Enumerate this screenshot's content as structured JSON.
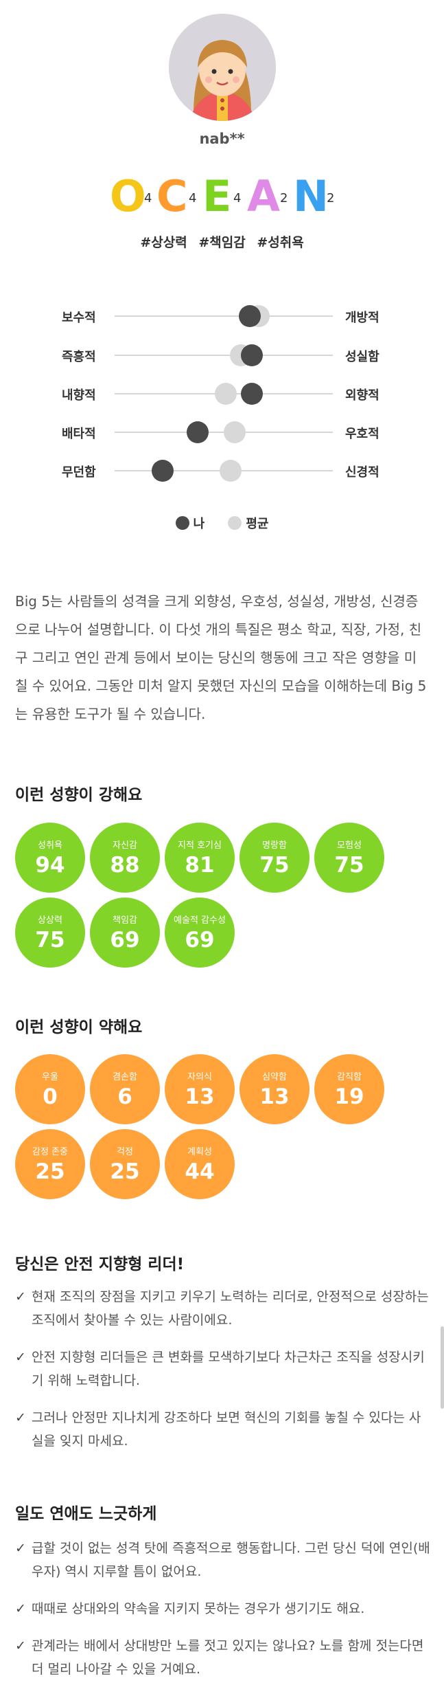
{
  "profile": {
    "username": "nab**"
  },
  "ocean": [
    {
      "letter": "O",
      "score": "4",
      "color": "#f5c518"
    },
    {
      "letter": "C",
      "score": "4",
      "color": "#ff9a2e"
    },
    {
      "letter": "E",
      "score": "4",
      "color": "#7ed321"
    },
    {
      "letter": "A",
      "score": "2",
      "color": "#e08ae8"
    },
    {
      "letter": "N",
      "score": "2",
      "color": "#3aa0f0"
    }
  ],
  "tags": [
    "#상상력",
    "#책임감",
    "#성취욕"
  ],
  "traits": [
    {
      "left": "보수적",
      "right": "개방적",
      "me": 0.62,
      "avg": 0.66
    },
    {
      "left": "즉흥적",
      "right": "성실함",
      "me": 0.63,
      "avg": 0.58
    },
    {
      "left": "내향적",
      "right": "외향적",
      "me": 0.63,
      "avg": 0.51
    },
    {
      "left": "배타적",
      "right": "우호적",
      "me": 0.38,
      "avg": 0.55
    },
    {
      "left": "무던함",
      "right": "신경적",
      "me": 0.22,
      "avg": 0.53
    }
  ],
  "legend": {
    "me_label": "나",
    "avg_label": "평균",
    "me_color": "#4a4a4a",
    "avg_color": "#d8d8d8"
  },
  "description": "Big 5는 사람들의 성격을 크게 외향성, 우호성, 성실성, 개방성, 신경증으로 나누어 설명합니다. 이 다섯 개의 특질은 평소 학교, 직장, 가정, 친구 그리고 연인 관계 등에서 보이는 당신의 행동에 크고 작은 영향을 미칠 수 있어요. 그동안 미처 알지 못했던 자신의 모습을 이해하는데 Big 5는 유용한 도구가 될 수 있습니다.",
  "strong": {
    "title": "이런 성향이 강해요",
    "items": [
      {
        "label": "성취욕",
        "value": "94"
      },
      {
        "label": "자신감",
        "value": "88"
      },
      {
        "label": "지적 호기심",
        "value": "81"
      },
      {
        "label": "명랑함",
        "value": "75"
      },
      {
        "label": "모험성",
        "value": "75"
      },
      {
        "label": "상상력",
        "value": "75"
      },
      {
        "label": "책임감",
        "value": "69"
      },
      {
        "label": "예술적 감수성",
        "value": "69"
      }
    ]
  },
  "weak": {
    "title": "이런 성향이 약해요",
    "items": [
      {
        "label": "우울",
        "value": "0"
      },
      {
        "label": "겸손함",
        "value": "6"
      },
      {
        "label": "자의식",
        "value": "13"
      },
      {
        "label": "심약함",
        "value": "13"
      },
      {
        "label": "감직함",
        "value": "19"
      },
      {
        "label": "감정 존중",
        "value": "25"
      },
      {
        "label": "걱정",
        "value": "25"
      },
      {
        "label": "계획성",
        "value": "44"
      }
    ]
  },
  "leader": {
    "title": "당신은 안전 지향형 리더!",
    "bullets": [
      "현재 조직의 장점을 지키고 키우기 노력하는 리더로, 안정적으로 성장하는 조직에서 찾아볼 수 있는 사람이에요.",
      "안전 지향형 리더들은 큰 변화를 모색하기보다 차근차근 조직을 성장시키기 위해 노력합니다.",
      "그러나 안정만 지나치게 강조하다 보면 혁신의 기회를 놓칠 수 있다는 사실을 잊지 마세요."
    ]
  },
  "love": {
    "title": "일도 연애도 느긋하게",
    "bullets": [
      "급할 것이 없는 성격 탓에 즉흥적으로 행동합니다. 그런 당신 덕에 연인(배우자) 역시 지루할 틈이 없어요.",
      "때때로 상대와의 약속을 지키지 못하는 경우가 생기기도 해요.",
      "관계라는 배에서 상대방만 노를 젓고 있지는 않나요? 노를 함께 젓는다면 더 멀리 나아갈 수 있을 거예요."
    ]
  },
  "check_symbol": "✓"
}
